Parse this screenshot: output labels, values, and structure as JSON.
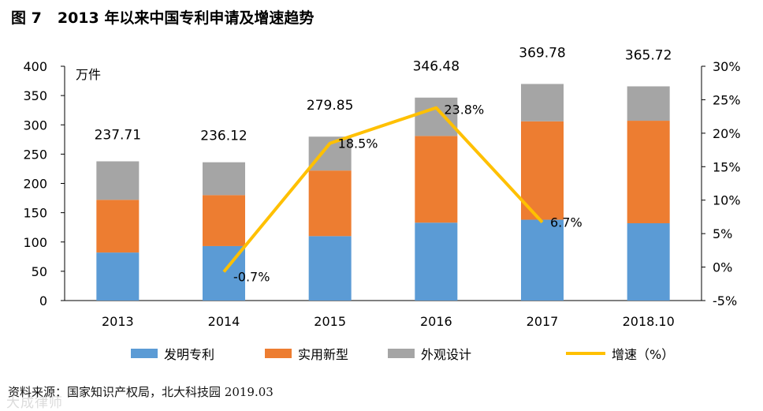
{
  "title": {
    "label": "图 7",
    "text": "2013 年以来中国专利申请及增速趋势"
  },
  "chart_data": {
    "type": "bar",
    "stacked": true,
    "unit_label": "万件",
    "categories": [
      "2013",
      "2014",
      "2015",
      "2016",
      "2017",
      "2018.10"
    ],
    "series": [
      {
        "name": "发明专利",
        "color": "#5B9BD5",
        "values": [
          82,
          93,
          110,
          133,
          138,
          132
        ]
      },
      {
        "name": "实用新型",
        "color": "#ED7D31",
        "values": [
          90,
          87,
          112,
          148,
          168,
          175
        ]
      },
      {
        "name": "外观设计",
        "color": "#A5A5A5",
        "values": [
          65.71,
          56.12,
          57.85,
          65.48,
          63.78,
          58.72
        ]
      }
    ],
    "totals": [
      "237.71",
      "236.12",
      "279.85",
      "346.48",
      "369.78",
      "365.72"
    ],
    "line": {
      "name": "增速（%）",
      "color": "#FFC000",
      "points": [
        {
          "category": "2014",
          "value": -0.7,
          "label": "-0.7%"
        },
        {
          "category": "2015",
          "value": 18.5,
          "label": "18.5%"
        },
        {
          "category": "2016",
          "value": 23.8,
          "label": "23.8%"
        },
        {
          "category": "2017",
          "value": 6.7,
          "label": "6.7%"
        }
      ]
    },
    "y_left": {
      "min": 0,
      "max": 400,
      "step": 50,
      "ticks": [
        "0",
        "50",
        "100",
        "150",
        "200",
        "250",
        "300",
        "350",
        "400"
      ]
    },
    "y_right": {
      "min": -5,
      "max": 30,
      "step": 5,
      "ticks": [
        "-5%",
        "0%",
        "5%",
        "10%",
        "15%",
        "20%",
        "25%",
        "30%"
      ]
    },
    "grid": false,
    "legend_position": "bottom"
  },
  "source": {
    "text": "资料来源：国家知识产权局，北大科技园",
    "date": "2019.03"
  },
  "watermark": "大成律师"
}
